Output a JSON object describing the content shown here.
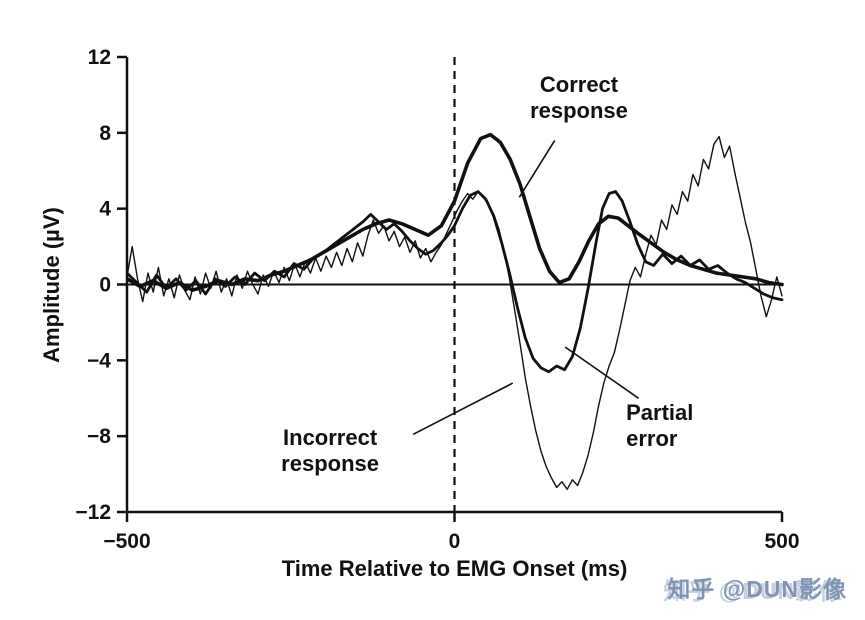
{
  "figure": {
    "background": "#ffffff",
    "line_color": "#111111",
    "watermark": {
      "text": "知乎 @DUN影像",
      "color": "#7f95b3"
    }
  },
  "chart_data": {
    "type": "line",
    "title": "",
    "xlabel": "Time Relative to EMG Onset (ms)",
    "ylabel": "Amplitude (µV)",
    "xlim": [
      -500,
      500
    ],
    "ylim": [
      -12,
      12
    ],
    "x_ticks": [
      {
        "v": -500,
        "label": "−500"
      },
      {
        "v": 0,
        "label": "0"
      },
      {
        "v": 500,
        "label": "500"
      }
    ],
    "y_ticks": [
      {
        "v": -12,
        "label": "−12"
      },
      {
        "v": -8,
        "label": "−8"
      },
      {
        "v": -4,
        "label": "−4"
      },
      {
        "v": 0,
        "label": "0"
      },
      {
        "v": 4,
        "label": "4"
      },
      {
        "v": 8,
        "label": "8"
      },
      {
        "v": 12,
        "label": "12"
      }
    ],
    "grid": false,
    "legend_position": "none",
    "zero_line": true,
    "event_line_x": 0,
    "series": [
      {
        "name": "Incorrect response",
        "stroke_width": 1.4,
        "points": [
          [
            -500,
            0.4
          ],
          [
            -492,
            2.0
          ],
          [
            -484,
            0.3
          ],
          [
            -476,
            -0.9
          ],
          [
            -468,
            0.6
          ],
          [
            -460,
            -0.4
          ],
          [
            -452,
            0.9
          ],
          [
            -444,
            -0.6
          ],
          [
            -436,
            0.3
          ],
          [
            -428,
            -0.7
          ],
          [
            -420,
            0.5
          ],
          [
            -412,
            -0.3
          ],
          [
            -404,
            -0.8
          ],
          [
            -396,
            0.4
          ],
          [
            -388,
            -0.5
          ],
          [
            -380,
            0.6
          ],
          [
            -372,
            -0.2
          ],
          [
            -364,
            0.7
          ],
          [
            -356,
            -0.4
          ],
          [
            -348,
            0.3
          ],
          [
            -340,
            -0.6
          ],
          [
            -332,
            0.5
          ],
          [
            -324,
            -0.2
          ],
          [
            -316,
            0.7
          ],
          [
            -308,
            0.0
          ],
          [
            -300,
            -0.5
          ],
          [
            -292,
            0.5
          ],
          [
            -284,
            -0.1
          ],
          [
            -276,
            0.7
          ],
          [
            -268,
            0.1
          ],
          [
            -260,
            0.9
          ],
          [
            -252,
            0.2
          ],
          [
            -244,
            1.1
          ],
          [
            -236,
            0.4
          ],
          [
            -228,
            1.2
          ],
          [
            -220,
            0.6
          ],
          [
            -212,
            1.4
          ],
          [
            -204,
            0.7
          ],
          [
            -196,
            1.5
          ],
          [
            -188,
            0.9
          ],
          [
            -180,
            1.7
          ],
          [
            -172,
            1.0
          ],
          [
            -164,
            1.9
          ],
          [
            -156,
            1.2
          ],
          [
            -148,
            2.2
          ],
          [
            -140,
            1.5
          ],
          [
            -132,
            2.6
          ],
          [
            -124,
            3.4
          ],
          [
            -116,
            2.7
          ],
          [
            -108,
            3.1
          ],
          [
            -100,
            2.3
          ],
          [
            -92,
            2.8
          ],
          [
            -84,
            2.0
          ],
          [
            -76,
            2.5
          ],
          [
            -68,
            1.7
          ],
          [
            -60,
            2.3
          ],
          [
            -52,
            1.4
          ],
          [
            -44,
            1.9
          ],
          [
            -36,
            1.2
          ],
          [
            -28,
            1.7
          ],
          [
            -20,
            2.1
          ],
          [
            -12,
            2.7
          ],
          [
            -4,
            3.3
          ],
          [
            4,
            3.9
          ],
          [
            12,
            4.4
          ],
          [
            20,
            4.8
          ],
          [
            28,
            4.5
          ],
          [
            36,
            4.9
          ],
          [
            44,
            4.6
          ],
          [
            52,
            4.2
          ],
          [
            60,
            3.7
          ],
          [
            68,
            2.9
          ],
          [
            76,
            1.7
          ],
          [
            84,
            0.3
          ],
          [
            92,
            -1.4
          ],
          [
            100,
            -3.1
          ],
          [
            108,
            -4.9
          ],
          [
            116,
            -6.4
          ],
          [
            124,
            -7.7
          ],
          [
            132,
            -8.8
          ],
          [
            140,
            -9.6
          ],
          [
            148,
            -10.2
          ],
          [
            156,
            -10.7
          ],
          [
            164,
            -10.4
          ],
          [
            172,
            -10.8
          ],
          [
            180,
            -10.3
          ],
          [
            188,
            -10.6
          ],
          [
            196,
            -9.9
          ],
          [
            204,
            -9.0
          ],
          [
            212,
            -7.8
          ],
          [
            220,
            -6.4
          ],
          [
            228,
            -5.2
          ],
          [
            236,
            -4.3
          ],
          [
            244,
            -3.6
          ],
          [
            252,
            -2.4
          ],
          [
            260,
            -1.1
          ],
          [
            268,
            0.2
          ],
          [
            276,
            0.9
          ],
          [
            284,
            0.4
          ],
          [
            292,
            1.6
          ],
          [
            300,
            2.6
          ],
          [
            308,
            2.1
          ],
          [
            316,
            3.4
          ],
          [
            324,
            2.9
          ],
          [
            332,
            4.2
          ],
          [
            340,
            3.7
          ],
          [
            348,
            4.9
          ],
          [
            356,
            4.4
          ],
          [
            364,
            5.8
          ],
          [
            372,
            5.2
          ],
          [
            380,
            6.6
          ],
          [
            388,
            6.1
          ],
          [
            396,
            7.4
          ],
          [
            404,
            7.8
          ],
          [
            412,
            6.7
          ],
          [
            420,
            7.3
          ],
          [
            428,
            5.9
          ],
          [
            436,
            4.6
          ],
          [
            444,
            3.3
          ],
          [
            452,
            2.2
          ],
          [
            460,
            0.8
          ],
          [
            468,
            -0.6
          ],
          [
            476,
            -1.7
          ],
          [
            484,
            -0.8
          ],
          [
            492,
            0.4
          ],
          [
            500,
            -0.6
          ]
        ]
      },
      {
        "name": "Partial error",
        "stroke_width": 2.8,
        "points": [
          [
            -500,
            0.6
          ],
          [
            -485,
            0.1
          ],
          [
            -470,
            -0.4
          ],
          [
            -455,
            0.5
          ],
          [
            -440,
            -0.2
          ],
          [
            -425,
            0.3
          ],
          [
            -410,
            -0.3
          ],
          [
            -395,
            0.2
          ],
          [
            -380,
            -0.5
          ],
          [
            -365,
            0.3
          ],
          [
            -350,
            -0.1
          ],
          [
            -335,
            0.4
          ],
          [
            -320,
            0.0
          ],
          [
            -305,
            0.6
          ],
          [
            -290,
            0.2
          ],
          [
            -275,
            0.7
          ],
          [
            -260,
            0.4
          ],
          [
            -245,
            1.1
          ],
          [
            -230,
            0.8
          ],
          [
            -215,
            1.4
          ],
          [
            -200,
            1.7
          ],
          [
            -185,
            2.1
          ],
          [
            -170,
            2.5
          ],
          [
            -155,
            2.9
          ],
          [
            -140,
            3.3
          ],
          [
            -128,
            3.7
          ],
          [
            -116,
            3.3
          ],
          [
            -104,
            2.9
          ],
          [
            -92,
            3.2
          ],
          [
            -80,
            2.8
          ],
          [
            -68,
            2.3
          ],
          [
            -56,
            1.9
          ],
          [
            -44,
            1.6
          ],
          [
            -32,
            1.8
          ],
          [
            -20,
            2.2
          ],
          [
            -10,
            2.6
          ],
          [
            0,
            3.1
          ],
          [
            12,
            4.0
          ],
          [
            24,
            4.7
          ],
          [
            36,
            4.9
          ],
          [
            48,
            4.5
          ],
          [
            60,
            3.6
          ],
          [
            72,
            2.2
          ],
          [
            84,
            0.6
          ],
          [
            96,
            -1.2
          ],
          [
            108,
            -2.8
          ],
          [
            120,
            -3.9
          ],
          [
            132,
            -4.4
          ],
          [
            144,
            -4.6
          ],
          [
            156,
            -4.3
          ],
          [
            168,
            -4.5
          ],
          [
            180,
            -3.8
          ],
          [
            192,
            -2.3
          ],
          [
            204,
            -0.2
          ],
          [
            216,
            2.2
          ],
          [
            226,
            4.0
          ],
          [
            236,
            4.8
          ],
          [
            246,
            4.9
          ],
          [
            256,
            4.4
          ],
          [
            268,
            3.3
          ],
          [
            280,
            2.1
          ],
          [
            292,
            1.2
          ],
          [
            304,
            1.0
          ],
          [
            318,
            1.6
          ],
          [
            332,
            1.1
          ],
          [
            346,
            1.5
          ],
          [
            360,
            1.0
          ],
          [
            374,
            1.3
          ],
          [
            388,
            0.8
          ],
          [
            402,
            1.0
          ],
          [
            416,
            0.6
          ],
          [
            430,
            0.3
          ],
          [
            444,
            0.1
          ],
          [
            458,
            -0.2
          ],
          [
            472,
            -0.5
          ],
          [
            486,
            -0.7
          ],
          [
            500,
            -0.8
          ]
        ]
      },
      {
        "name": "Correct response",
        "stroke_width": 3.6,
        "points": [
          [
            -500,
            0.3
          ],
          [
            -480,
            -0.1
          ],
          [
            -460,
            0.2
          ],
          [
            -440,
            -0.2
          ],
          [
            -420,
            0.1
          ],
          [
            -400,
            -0.3
          ],
          [
            -380,
            -0.1
          ],
          [
            -360,
            0.2
          ],
          [
            -340,
            0.0
          ],
          [
            -320,
            0.3
          ],
          [
            -300,
            0.2
          ],
          [
            -280,
            0.5
          ],
          [
            -260,
            0.7
          ],
          [
            -240,
            1.0
          ],
          [
            -220,
            1.3
          ],
          [
            -200,
            1.7
          ],
          [
            -180,
            2.1
          ],
          [
            -160,
            2.5
          ],
          [
            -140,
            2.9
          ],
          [
            -120,
            3.2
          ],
          [
            -100,
            3.4
          ],
          [
            -80,
            3.2
          ],
          [
            -60,
            2.9
          ],
          [
            -40,
            2.6
          ],
          [
            -20,
            3.1
          ],
          [
            0,
            4.4
          ],
          [
            20,
            6.4
          ],
          [
            40,
            7.7
          ],
          [
            55,
            7.9
          ],
          [
            70,
            7.5
          ],
          [
            85,
            6.6
          ],
          [
            100,
            5.3
          ],
          [
            115,
            3.6
          ],
          [
            130,
            1.9
          ],
          [
            145,
            0.7
          ],
          [
            160,
            0.1
          ],
          [
            175,
            0.3
          ],
          [
            190,
            1.2
          ],
          [
            205,
            2.3
          ],
          [
            220,
            3.2
          ],
          [
            235,
            3.6
          ],
          [
            250,
            3.5
          ],
          [
            265,
            3.1
          ],
          [
            280,
            2.7
          ],
          [
            300,
            2.2
          ],
          [
            320,
            1.7
          ],
          [
            340,
            1.3
          ],
          [
            360,
            1.0
          ],
          [
            380,
            0.8
          ],
          [
            400,
            0.6
          ],
          [
            420,
            0.5
          ],
          [
            440,
            0.4
          ],
          [
            460,
            0.3
          ],
          [
            480,
            0.1
          ],
          [
            500,
            0.0
          ]
        ]
      }
    ],
    "annotations": [
      {
        "label": "Correct response",
        "lines": [
          "Correct",
          "response"
        ],
        "tx": 190,
        "ty": 10.15,
        "anchor": "middle",
        "leader": [
          [
            153,
            7.6
          ],
          [
            99,
            4.6
          ]
        ]
      },
      {
        "label": "Incorrect response",
        "lines": [
          "Incorrect",
          "response"
        ],
        "tx": -190,
        "ty": -8.46,
        "anchor": "middle",
        "leader": [
          [
            -63,
            -7.9
          ],
          [
            89,
            -5.2
          ]
        ]
      },
      {
        "label": "Partial error",
        "lines": [
          "Partial",
          "error"
        ],
        "tx": 262,
        "ty": -7.14,
        "anchor": "start",
        "leader": [
          [
            281,
            -6.0
          ],
          [
            169,
            -3.3
          ]
        ]
      }
    ]
  }
}
